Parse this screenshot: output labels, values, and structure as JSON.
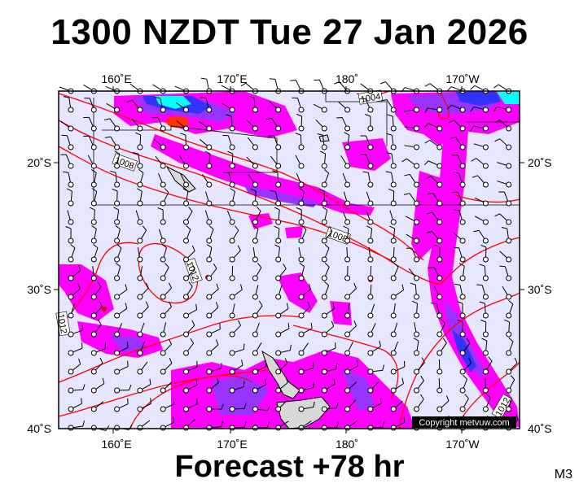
{
  "title": "1300 NZDT Tue 27 Jan 2026",
  "footer": "Forecast +78 hr",
  "model_code": "M3",
  "copyright": "Copyright metvuw.com",
  "longitude_labels": [
    "160˚E",
    "170˚E",
    "180˚",
    "170˚W"
  ],
  "latitude_labels": [
    "20˚S",
    "30˚S",
    "40˚S"
  ],
  "isobar_labels": [
    "1004",
    "1008",
    "1008",
    "1012",
    "1012",
    "1012"
  ],
  "colors": {
    "ocean": "#e6e6ff",
    "isobar": "#ff0000",
    "rain_light": "#ff00ff",
    "rain_mid": "#9933ff",
    "rain_heavy": "#3333ff",
    "rain_extreme": "#00ffff",
    "land": "#d8d8d8"
  }
}
